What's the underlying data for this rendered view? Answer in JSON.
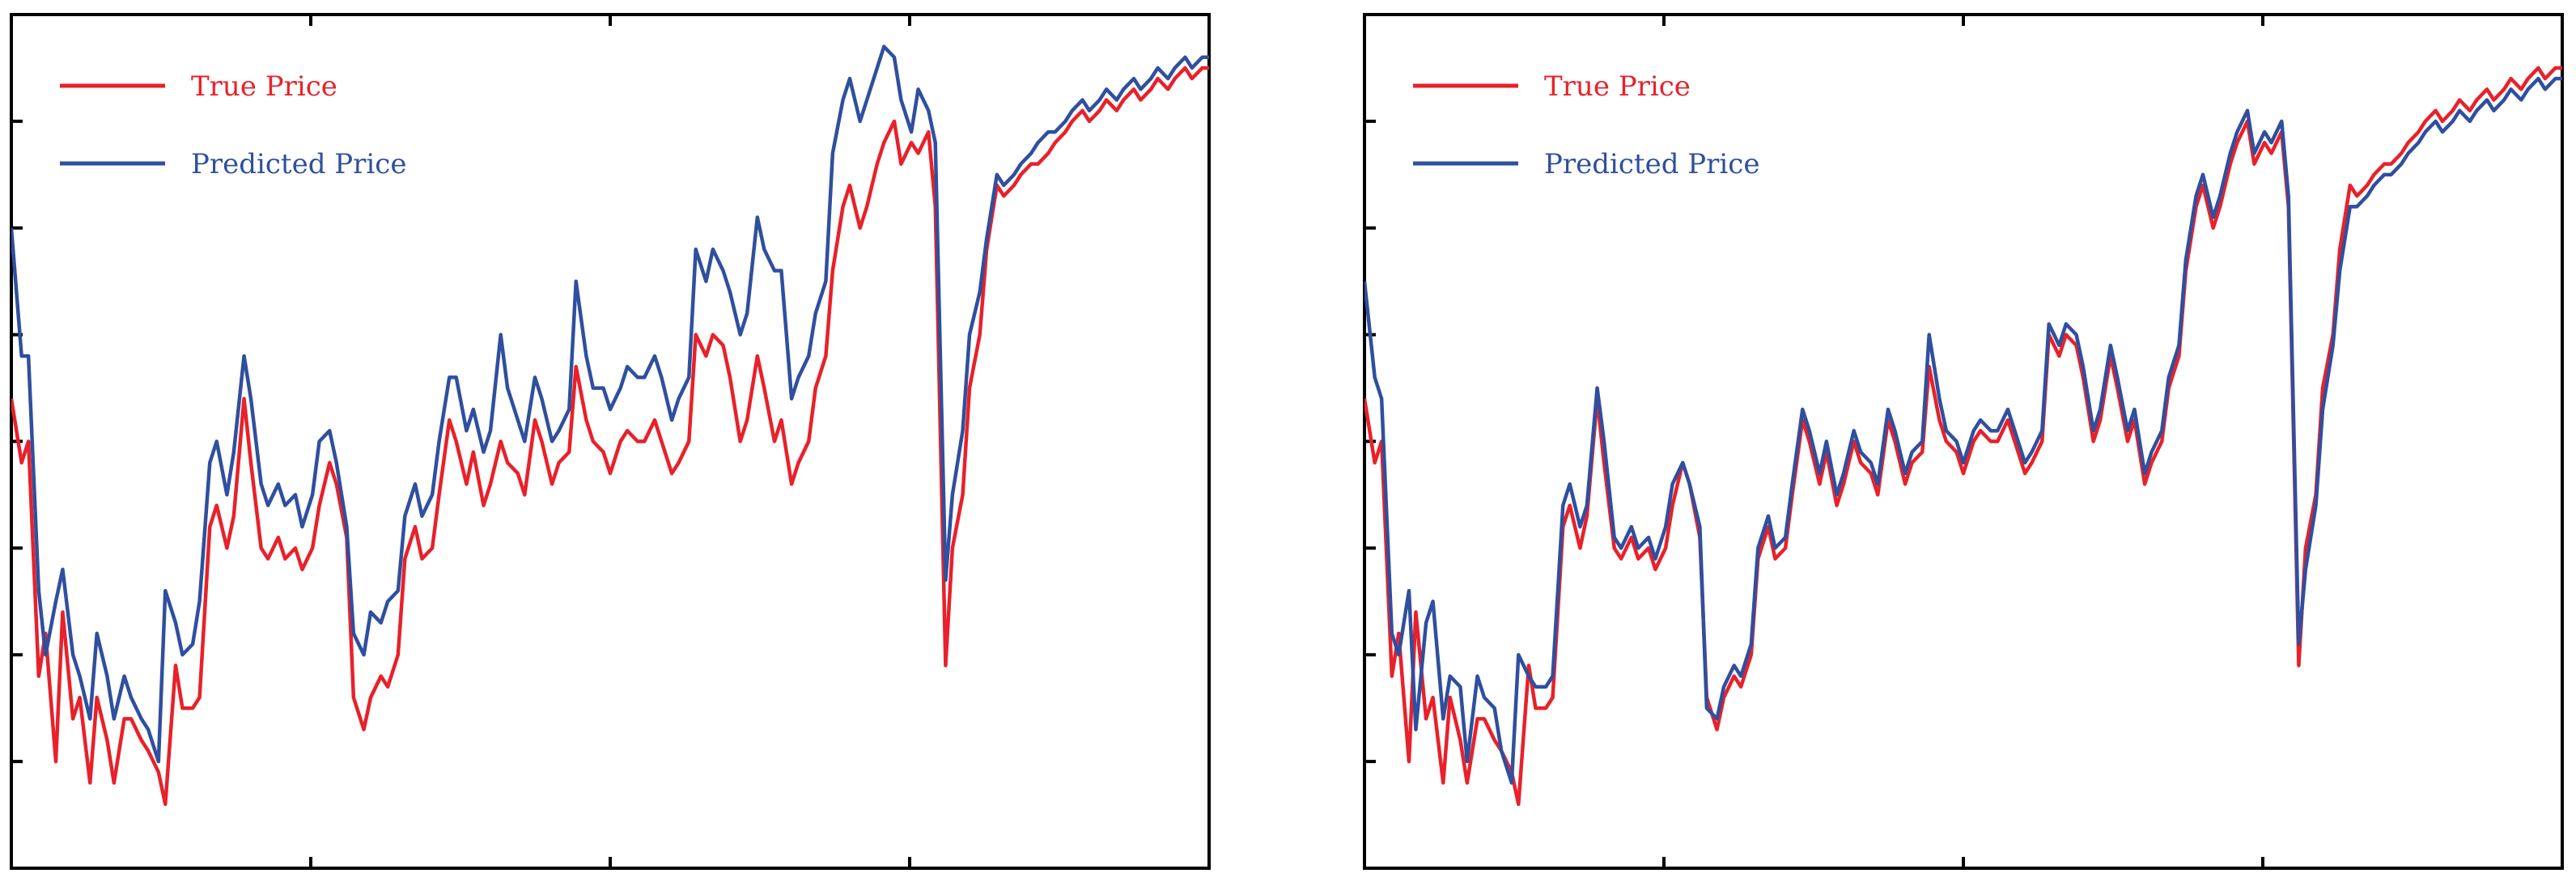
{
  "figure": {
    "colors": {
      "true": "#e8212a",
      "predicted": "#2f4f9f",
      "frame": "#000000"
    }
  },
  "chart_data": [
    {
      "type": "line",
      "title": "",
      "xlabel": "",
      "ylabel": "",
      "xlim": [
        0,
        350
      ],
      "ylim": [
        0,
        8
      ],
      "grid": false,
      "legend": "top-left",
      "legend_entries": [
        "True Price",
        "Predicted Price"
      ],
      "x": [
        0,
        3,
        5,
        8,
        10,
        13,
        15,
        18,
        20,
        23,
        25,
        28,
        30,
        33,
        35,
        38,
        40,
        43,
        45,
        48,
        50,
        53,
        55,
        58,
        60,
        63,
        65,
        68,
        70,
        73,
        75,
        78,
        80,
        83,
        85,
        88,
        90,
        93,
        95,
        98,
        100,
        103,
        105,
        108,
        110,
        113,
        115,
        118,
        120,
        123,
        125,
        128,
        130,
        133,
        135,
        138,
        140,
        143,
        145,
        148,
        150,
        153,
        155,
        158,
        160,
        163,
        165,
        168,
        170,
        173,
        175,
        178,
        180,
        183,
        185,
        188,
        190,
        193,
        195,
        198,
        200,
        203,
        205,
        208,
        210,
        213,
        215,
        218,
        220,
        223,
        225,
        228,
        230,
        233,
        235,
        238,
        240,
        243,
        245,
        248,
        250,
        253,
        255,
        258,
        260,
        263,
        265,
        268,
        270,
        273,
        275,
        278,
        280,
        283,
        285,
        288,
        290,
        293,
        295,
        298,
        300,
        303,
        305,
        308,
        310,
        313,
        315,
        318,
        320,
        323,
        325,
        328,
        330,
        333,
        335,
        338,
        340,
        343,
        345,
        348,
        350
      ],
      "series": [
        {
          "name": "True Price",
          "color": "#e8212a",
          "values": [
            4.4,
            3.8,
            4.0,
            1.8,
            2.2,
            1.0,
            2.4,
            1.4,
            1.6,
            0.8,
            1.6,
            1.2,
            0.8,
            1.4,
            1.4,
            1.2,
            1.1,
            0.9,
            0.6,
            1.9,
            1.5,
            1.5,
            1.6,
            3.2,
            3.4,
            3.0,
            3.3,
            4.4,
            3.8,
            3.0,
            2.9,
            3.1,
            2.9,
            3.0,
            2.8,
            3.0,
            3.4,
            3.8,
            3.6,
            3.1,
            1.6,
            1.3,
            1.6,
            1.8,
            1.7,
            2.0,
            2.9,
            3.2,
            2.9,
            3.0,
            3.5,
            4.2,
            4.0,
            3.6,
            3.9,
            3.4,
            3.6,
            4.0,
            3.8,
            3.7,
            3.5,
            4.2,
            4.0,
            3.6,
            3.8,
            3.9,
            4.7,
            4.2,
            4.0,
            3.9,
            3.7,
            4.0,
            4.1,
            4.0,
            4.0,
            4.2,
            4.0,
            3.7,
            3.8,
            4.0,
            5.0,
            4.8,
            5.0,
            4.9,
            4.6,
            4.0,
            4.2,
            4.8,
            4.5,
            4.0,
            4.2,
            3.6,
            3.8,
            4.0,
            4.5,
            4.8,
            5.6,
            6.2,
            6.4,
            6.0,
            6.2,
            6.6,
            6.8,
            7.0,
            6.6,
            6.8,
            6.7,
            6.9,
            6.2,
            1.9,
            3.0,
            3.5,
            4.5,
            5.0,
            5.8,
            6.4,
            6.3,
            6.4,
            6.5,
            6.6,
            6.6,
            6.7,
            6.8,
            6.9,
            7.0,
            7.1,
            7.0,
            7.1,
            7.2,
            7.1,
            7.2,
            7.3,
            7.2,
            7.3,
            7.4,
            7.3,
            7.4,
            7.5,
            7.4,
            7.5,
            7.5
          ]
        },
        {
          "name": "Predicted Price",
          "color": "#2f4f9f",
          "values": [
            6.0,
            4.8,
            4.8,
            2.6,
            2.0,
            2.5,
            2.8,
            2.0,
            1.8,
            1.4,
            2.2,
            1.8,
            1.4,
            1.8,
            1.6,
            1.4,
            1.3,
            1.0,
            2.6,
            2.3,
            2.0,
            2.1,
            2.5,
            3.8,
            4.0,
            3.5,
            3.9,
            4.8,
            4.4,
            3.6,
            3.4,
            3.6,
            3.4,
            3.5,
            3.2,
            3.5,
            4.0,
            4.1,
            3.8,
            3.2,
            2.2,
            2.0,
            2.4,
            2.3,
            2.5,
            2.6,
            3.3,
            3.6,
            3.3,
            3.5,
            4.0,
            4.6,
            4.6,
            4.1,
            4.3,
            3.9,
            4.1,
            5.0,
            4.5,
            4.2,
            4.0,
            4.6,
            4.4,
            4.0,
            4.1,
            4.3,
            5.5,
            4.8,
            4.5,
            4.5,
            4.3,
            4.5,
            4.7,
            4.6,
            4.6,
            4.8,
            4.6,
            4.2,
            4.4,
            4.6,
            5.8,
            5.5,
            5.8,
            5.6,
            5.4,
            5.0,
            5.2,
            6.1,
            5.8,
            5.6,
            5.6,
            4.4,
            4.6,
            4.8,
            5.2,
            5.5,
            6.7,
            7.2,
            7.4,
            7.0,
            7.2,
            7.5,
            7.7,
            7.6,
            7.2,
            6.9,
            7.3,
            7.1,
            6.8,
            2.7,
            3.5,
            4.1,
            5.0,
            5.4,
            5.9,
            6.5,
            6.4,
            6.5,
            6.6,
            6.7,
            6.8,
            6.9,
            6.9,
            7.0,
            7.1,
            7.2,
            7.1,
            7.2,
            7.3,
            7.2,
            7.3,
            7.4,
            7.3,
            7.4,
            7.5,
            7.4,
            7.5,
            7.6,
            7.5,
            7.6,
            7.6
          ]
        }
      ]
    },
    {
      "type": "line",
      "title": "",
      "xlabel": "",
      "ylabel": "",
      "xlim": [
        0,
        350
      ],
      "ylim": [
        0,
        8
      ],
      "grid": false,
      "legend": "top-left",
      "legend_entries": [
        "True Price",
        "Predicted Price"
      ],
      "x": [
        0,
        3,
        5,
        8,
        10,
        13,
        15,
        18,
        20,
        23,
        25,
        28,
        30,
        33,
        35,
        38,
        40,
        43,
        45,
        48,
        50,
        53,
        55,
        58,
        60,
        63,
        65,
        68,
        70,
        73,
        75,
        78,
        80,
        83,
        85,
        88,
        90,
        93,
        95,
        98,
        100,
        103,
        105,
        108,
        110,
        113,
        115,
        118,
        120,
        123,
        125,
        128,
        130,
        133,
        135,
        138,
        140,
        143,
        145,
        148,
        150,
        153,
        155,
        158,
        160,
        163,
        165,
        168,
        170,
        173,
        175,
        178,
        180,
        183,
        185,
        188,
        190,
        193,
        195,
        198,
        200,
        203,
        205,
        208,
        210,
        213,
        215,
        218,
        220,
        223,
        225,
        228,
        230,
        233,
        235,
        238,
        240,
        243,
        245,
        248,
        250,
        253,
        255,
        258,
        260,
        263,
        265,
        268,
        270,
        273,
        275,
        278,
        280,
        283,
        285,
        288,
        290,
        293,
        295,
        298,
        300,
        303,
        305,
        308,
        310,
        313,
        315,
        318,
        320,
        323,
        325,
        328,
        330,
        333,
        335,
        338,
        340,
        343,
        345,
        348,
        350
      ],
      "series": [
        {
          "name": "True Price",
          "color": "#e8212a",
          "values": [
            4.4,
            3.8,
            4.0,
            1.8,
            2.2,
            1.0,
            2.4,
            1.4,
            1.6,
            0.8,
            1.6,
            1.2,
            0.8,
            1.4,
            1.4,
            1.2,
            1.1,
            0.9,
            0.6,
            1.9,
            1.5,
            1.5,
            1.6,
            3.2,
            3.4,
            3.0,
            3.3,
            4.4,
            3.8,
            3.0,
            2.9,
            3.1,
            2.9,
            3.0,
            2.8,
            3.0,
            3.4,
            3.8,
            3.6,
            3.1,
            1.6,
            1.3,
            1.6,
            1.8,
            1.7,
            2.0,
            2.9,
            3.2,
            2.9,
            3.0,
            3.5,
            4.2,
            4.0,
            3.6,
            3.9,
            3.4,
            3.6,
            4.0,
            3.8,
            3.7,
            3.5,
            4.2,
            4.0,
            3.6,
            3.8,
            3.9,
            4.7,
            4.2,
            4.0,
            3.9,
            3.7,
            4.0,
            4.1,
            4.0,
            4.0,
            4.2,
            4.0,
            3.7,
            3.8,
            4.0,
            5.0,
            4.8,
            5.0,
            4.9,
            4.6,
            4.0,
            4.2,
            4.8,
            4.5,
            4.0,
            4.2,
            3.6,
            3.8,
            4.0,
            4.5,
            4.8,
            5.6,
            6.2,
            6.4,
            6.0,
            6.2,
            6.6,
            6.8,
            7.0,
            6.6,
            6.8,
            6.7,
            6.9,
            6.2,
            1.9,
            3.0,
            3.5,
            4.5,
            5.0,
            5.8,
            6.4,
            6.3,
            6.4,
            6.5,
            6.6,
            6.6,
            6.7,
            6.8,
            6.9,
            7.0,
            7.1,
            7.0,
            7.1,
            7.2,
            7.1,
            7.2,
            7.3,
            7.2,
            7.3,
            7.4,
            7.3,
            7.4,
            7.5,
            7.4,
            7.5,
            7.5
          ]
        },
        {
          "name": "Predicted Price",
          "color": "#2f4f9f",
          "values": [
            5.5,
            4.6,
            4.4,
            2.2,
            2.0,
            2.6,
            1.3,
            2.3,
            2.5,
            1.4,
            1.8,
            1.7,
            1.0,
            1.8,
            1.6,
            1.5,
            1.1,
            0.8,
            2.0,
            1.8,
            1.7,
            1.7,
            1.8,
            3.4,
            3.6,
            3.2,
            3.4,
            4.5,
            4.0,
            3.1,
            3.0,
            3.2,
            3.0,
            3.1,
            2.9,
            3.2,
            3.6,
            3.8,
            3.6,
            3.2,
            1.5,
            1.4,
            1.7,
            1.9,
            1.8,
            2.1,
            3.0,
            3.3,
            3.0,
            3.1,
            3.6,
            4.3,
            4.1,
            3.7,
            4.0,
            3.5,
            3.7,
            4.1,
            3.9,
            3.8,
            3.6,
            4.3,
            4.1,
            3.7,
            3.9,
            4.0,
            5.0,
            4.4,
            4.1,
            4.0,
            3.8,
            4.1,
            4.2,
            4.1,
            4.1,
            4.3,
            4.1,
            3.8,
            3.9,
            4.1,
            5.1,
            4.9,
            5.1,
            5.0,
            4.7,
            4.1,
            4.3,
            4.9,
            4.6,
            4.1,
            4.3,
            3.7,
            3.9,
            4.1,
            4.6,
            4.9,
            5.7,
            6.3,
            6.5,
            6.1,
            6.3,
            6.7,
            6.9,
            7.1,
            6.7,
            6.9,
            6.8,
            7.0,
            6.3,
            2.1,
            2.8,
            3.4,
            4.3,
            4.9,
            5.6,
            6.2,
            6.2,
            6.3,
            6.4,
            6.5,
            6.5,
            6.6,
            6.7,
            6.8,
            6.9,
            7.0,
            6.9,
            7.0,
            7.1,
            7.0,
            7.1,
            7.2,
            7.1,
            7.2,
            7.3,
            7.2,
            7.3,
            7.4,
            7.3,
            7.4,
            7.4
          ]
        }
      ]
    }
  ]
}
